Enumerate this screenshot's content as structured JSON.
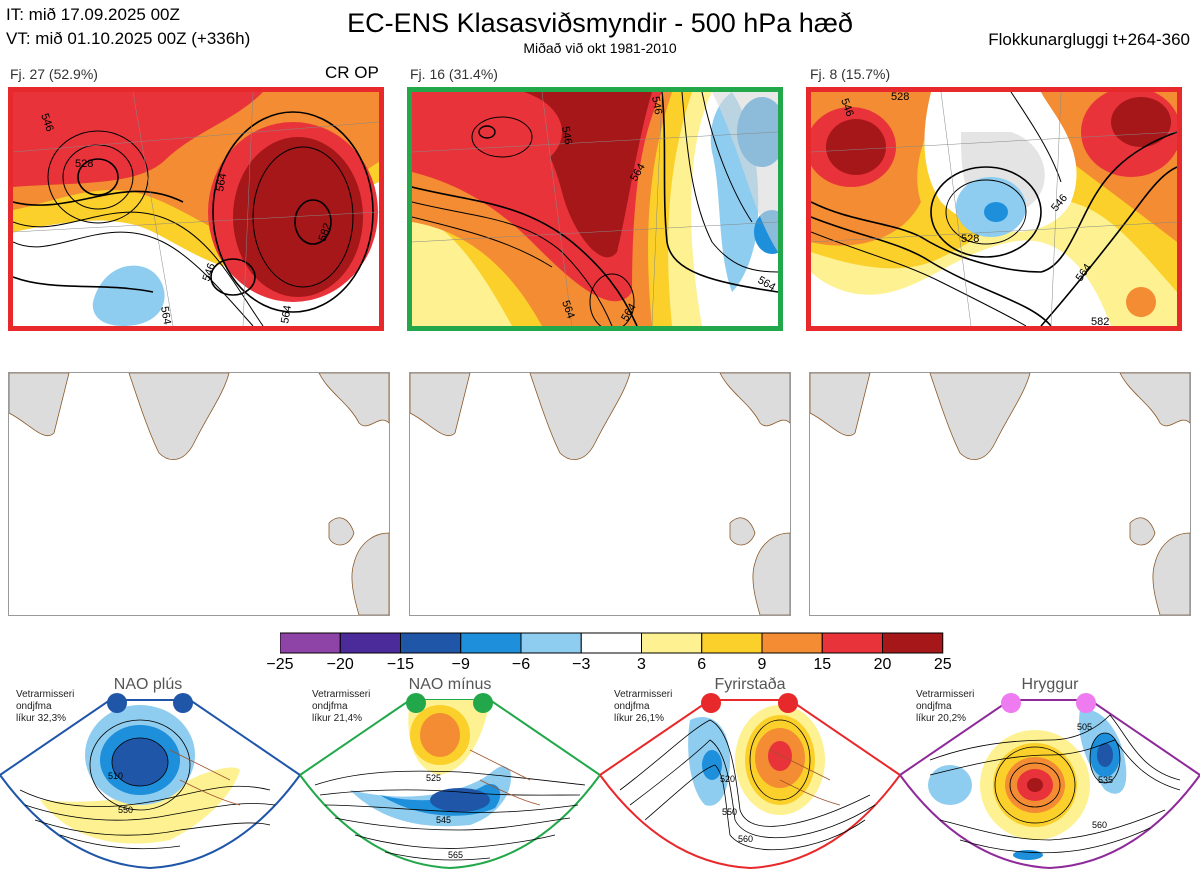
{
  "header": {
    "it_line": "IT: mið 17.09.2025 00Z",
    "vt_line": "VT: mið 01.10.2025 00Z  (+336h)",
    "title": "EC-ENS Klasasviðsmyndir - 500 hPa hæð",
    "subtitle": "Miðað við okt 1981-2010",
    "window": "Flokkunargluggi t+264-360"
  },
  "clusters": [
    {
      "label": "Fj. 27 (52.9%)",
      "border_color": "#e8292b",
      "tag": "CR OP",
      "contour_labels": [
        "546",
        "528",
        "564",
        "546",
        "564",
        "582",
        "564"
      ]
    },
    {
      "label": "Fj. 16 (31.4%)",
      "border_color": "#22a84a",
      "tag": "",
      "contour_labels": [
        "546",
        "546",
        "564",
        "564",
        "564",
        "564"
      ]
    },
    {
      "label": "Fj. 8 (15.7%)",
      "border_color": "#e8292b",
      "tag": "",
      "contour_labels": [
        "546",
        "528",
        "528",
        "546",
        "564",
        "582"
      ]
    }
  ],
  "colorbar": {
    "ticks": [
      "−25",
      "−20",
      "−15",
      "−9",
      "−6",
      "−3",
      "3",
      "6",
      "9",
      "15",
      "20",
      "25"
    ],
    "colors": [
      "#8e44a6",
      "#4b2a9a",
      "#1f56a8",
      "#1d8fdb",
      "#8ecdf0",
      "#ffffff",
      "#fdf191",
      "#fbd02a",
      "#f38c32",
      "#e9333a",
      "#a51719"
    ]
  },
  "regimes": [
    {
      "name": "NAO plús",
      "line1": "Vetrarmisseri",
      "line2": "ondjfma",
      "line3": "líkur 32,3%",
      "color": "#1f56a8",
      "dot_color": "#1f56a8",
      "contour_labels": [
        "510",
        "550"
      ]
    },
    {
      "name": "NAO mínus",
      "line1": "Vetrarmisseri",
      "line2": "ondjfma",
      "line3": "líkur 21,4%",
      "color": "#22a84a",
      "dot_color": "#22a84a",
      "contour_labels": [
        "525",
        "545",
        "565"
      ]
    },
    {
      "name": "Fyrirstaða",
      "line1": "Vetrarmisseri",
      "line2": "ondjfma",
      "line3": "líkur 26,1%",
      "color": "#e8292b",
      "dot_color": "#e8292b",
      "contour_labels": [
        "520",
        "550",
        "560"
      ]
    },
    {
      "name": "Hryggur",
      "line1": "Vetrarmisseri",
      "line2": "ondjfma",
      "line3": "líkur 20,2%",
      "color": "#8e2a9a",
      "dot_color": "#ee7cf0",
      "contour_labels": [
        "505",
        "535",
        "560"
      ]
    }
  ]
}
